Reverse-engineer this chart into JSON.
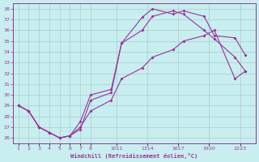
{
  "bg_color": "#c8eef0",
  "line_color": "#993399",
  "grid_color": "#aacccc",
  "axis_color": "#993399",
  "xlabel": "Windchill (Refroidissement éolien,°C)",
  "line1_x": [
    1,
    2,
    3,
    4,
    5,
    6,
    7,
    8,
    10,
    11,
    13,
    14,
    16,
    17,
    19,
    20,
    22,
    23
  ],
  "line1_y": [
    29,
    28.5,
    27,
    26.5,
    26,
    26.2,
    26.8,
    29.5,
    30.2,
    34.8,
    36.0,
    37.3,
    37.8,
    37.5,
    36.0,
    35.2,
    33.5,
    32.2
  ],
  "line2_x": [
    1,
    2,
    3,
    4,
    5,
    6,
    7,
    8,
    10,
    11,
    13,
    14,
    16,
    17,
    19,
    20,
    22,
    23
  ],
  "line2_y": [
    29,
    28.5,
    27,
    26.5,
    26,
    26.2,
    27.5,
    30.0,
    30.5,
    34.8,
    37.2,
    38.0,
    37.5,
    37.8,
    37.3,
    35.5,
    35.3,
    33.7
  ],
  "line3_x": [
    1,
    2,
    3,
    4,
    5,
    6,
    7,
    8,
    10,
    11,
    13,
    14,
    16,
    17,
    19,
    20,
    22,
    23
  ],
  "line3_y": [
    29,
    28.5,
    27,
    26.5,
    26,
    26.2,
    27.0,
    28.5,
    29.5,
    31.5,
    32.5,
    33.5,
    34.2,
    35.0,
    35.5,
    36.0,
    31.5,
    32.2
  ],
  "yticks": [
    26,
    27,
    28,
    29,
    30,
    31,
    32,
    33,
    34,
    35,
    36,
    37,
    38
  ],
  "xtick_single": [
    1,
    2,
    3,
    4,
    5,
    6,
    7,
    8
  ],
  "xtick_single_labels": [
    "1",
    "2",
    "3",
    "4",
    "5",
    "6",
    "7",
    "8"
  ],
  "xtick_pair_pos": [
    10.5,
    13.5,
    16.5,
    19.5,
    22.5
  ],
  "xtick_pair_labels": [
    "1011",
    "1314",
    "1617",
    "1920",
    "2223"
  ],
  "xlim": [
    0.5,
    24.0
  ],
  "ylim": [
    25.5,
    38.5
  ]
}
